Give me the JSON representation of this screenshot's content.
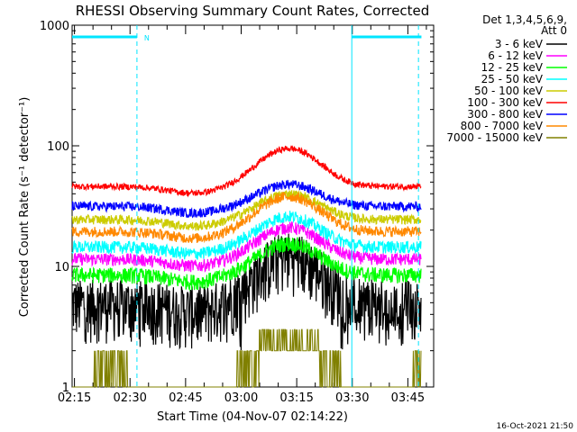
{
  "chart_data": {
    "type": "line",
    "title": "RHESSI Observing Summary Count Rates, Corrected",
    "ylabel": "Corrected Count Rate (s⁻¹ detector⁻¹)",
    "xlabel": "Start Time (04-Nov-07 02:14:22)",
    "yscale": "log",
    "ylim": [
      1,
      1000
    ],
    "xlim_min": [
      0,
      97.6
    ],
    "x_ticks": [
      "02:15",
      "02:30",
      "02:45",
      "03:00",
      "03:15",
      "03:30",
      "03:45"
    ],
    "y_ticks": [
      "1",
      "10",
      "100",
      "1000"
    ],
    "detector_label": "Det 1,3,4,5,6,9,",
    "attenuator_label": "Att 0",
    "timestamp": "16-Oct-2021 21:50",
    "night_flag_label": "N",
    "series": [
      {
        "name": "3 - 6 keV",
        "color": "#000000",
        "base": 5.0,
        "peak": 12.5,
        "noise": 0.55,
        "dips": true
      },
      {
        "name": "6 - 12 keV",
        "color": "#ff00ff",
        "base": 11.5,
        "peak": 21.0,
        "noise": 0.12
      },
      {
        "name": "12 - 25 keV",
        "color": "#00ff00",
        "base": 8.5,
        "peak": 15.5,
        "noise": 0.15
      },
      {
        "name": "25 - 50 keV",
        "color": "#00ffff",
        "base": 14.5,
        "peak": 26.0,
        "noise": 0.12
      },
      {
        "name": "50 - 100 keV",
        "color": "#cccc00",
        "base": 24.5,
        "peak": 40.0,
        "noise": 0.09
      },
      {
        "name": "100 - 300 keV",
        "color": "#ff0000",
        "base": 46.0,
        "peak": 95.0,
        "noise": 0.06
      },
      {
        "name": "300 - 800 keV",
        "color": "#0000ff",
        "base": 31.5,
        "peak": 48.0,
        "noise": 0.09
      },
      {
        "name": "800 - 7000 keV",
        "color": "#ff8800",
        "base": 19.5,
        "peak": 38.0,
        "noise": 0.1
      },
      {
        "name": "7000 - 15000 keV",
        "color": "#808000",
        "base": 1.0,
        "peak": 3.0,
        "noise": 0.0
      }
    ],
    "night_intervals_min": [
      [
        0,
        17.5
      ],
      [
        75.5,
        97.6
      ]
    ],
    "night_level": 800,
    "dashed_markers_min": [
      17.5,
      93.5
    ],
    "solid_markers_min": [
      75.5
    ]
  }
}
